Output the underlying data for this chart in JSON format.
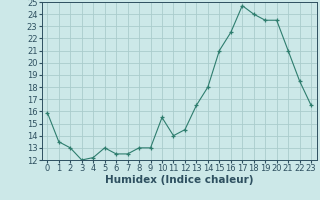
{
  "x": [
    0,
    1,
    2,
    3,
    4,
    5,
    6,
    7,
    8,
    9,
    10,
    11,
    12,
    13,
    14,
    15,
    16,
    17,
    18,
    19,
    20,
    21,
    22,
    23
  ],
  "y": [
    15.9,
    13.5,
    13.0,
    12.0,
    12.2,
    13.0,
    12.5,
    12.5,
    13.0,
    13.0,
    15.5,
    14.0,
    14.5,
    16.5,
    18.0,
    21.0,
    22.5,
    24.7,
    24.0,
    23.5,
    23.5,
    21.0,
    18.5,
    16.5
  ],
  "line_color": "#2e7d6e",
  "marker": "+",
  "bg_color": "#cce8e8",
  "grid_color": "#aacccc",
  "xlabel": "Humidex (Indice chaleur)",
  "ylim": [
    12,
    25
  ],
  "xlim_min": -0.5,
  "xlim_max": 23.5,
  "yticks": [
    12,
    13,
    14,
    15,
    16,
    17,
    18,
    19,
    20,
    21,
    22,
    23,
    24,
    25
  ],
  "xticks": [
    0,
    1,
    2,
    3,
    4,
    5,
    6,
    7,
    8,
    9,
    10,
    11,
    12,
    13,
    14,
    15,
    16,
    17,
    18,
    19,
    20,
    21,
    22,
    23
  ],
  "font_color": "#2e5060",
  "tick_fontsize": 6,
  "label_fontsize": 7.5
}
